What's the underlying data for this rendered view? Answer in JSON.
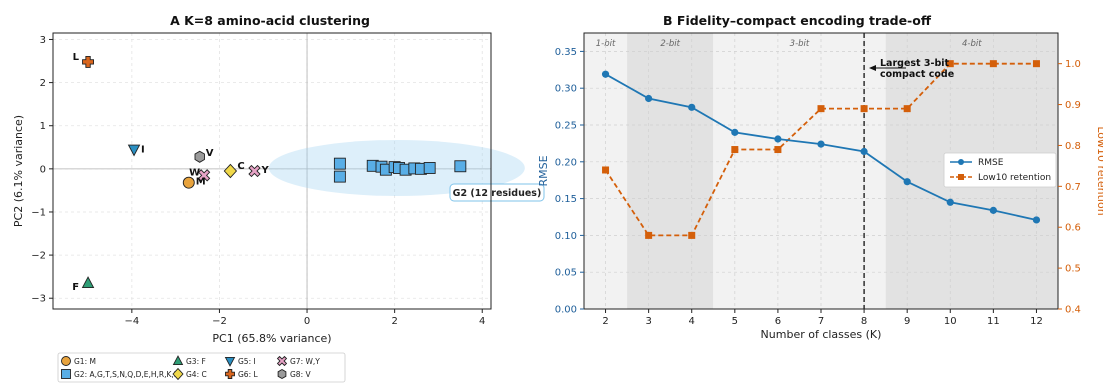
{
  "colors": {
    "G1": "#e8a33d",
    "G2": "#59aee6",
    "G3": "#2f9e76",
    "G4": "#f0d84a",
    "G5": "#2a8fc2",
    "G6": "#d9661e",
    "G7": "#e7a3c6",
    "G8": "#9a9a9a",
    "rmse": "#1f77b4",
    "low10": "#d45f0a"
  },
  "chart_data": [
    {
      "type": "scatter",
      "title": "A  K=8 amino-acid clustering",
      "xlabel": "PC1 (65.8% variance)",
      "ylabel": "PC2 (6.1% variance)",
      "xlim": [
        -5.8,
        4.2
      ],
      "ylim": [
        -3.25,
        3.15
      ],
      "xticks": [
        -4,
        -2,
        0,
        2,
        4
      ],
      "yticks": [
        -3,
        -2,
        -1,
        0,
        1,
        2,
        3
      ],
      "xtick_labels": [
        "−4",
        "−2",
        "0",
        "2",
        "4"
      ],
      "ytick_labels": [
        "−3",
        "−2",
        "−1",
        "0",
        "1",
        "2",
        "3"
      ],
      "grid": true,
      "annotation": "G2 (12 residues)",
      "points": [
        {
          "x": -5.0,
          "y": 2.48,
          "group": "G6",
          "marker": "plus",
          "label": "L"
        },
        {
          "x": -3.95,
          "y": 0.45,
          "group": "G5",
          "marker": "triangle-down",
          "label": "I"
        },
        {
          "x": -2.45,
          "y": 0.28,
          "group": "G8",
          "marker": "hexagon",
          "label": "V"
        },
        {
          "x": -2.7,
          "y": -0.32,
          "group": "G1",
          "marker": "circle",
          "label": "M"
        },
        {
          "x": -2.35,
          "y": -0.15,
          "group": "G7",
          "marker": "x",
          "label": "W"
        },
        {
          "x": -1.75,
          "y": -0.05,
          "group": "G4",
          "marker": "diamond",
          "label": "C"
        },
        {
          "x": -1.2,
          "y": -0.05,
          "group": "G7",
          "marker": "x",
          "label": "Y"
        },
        {
          "x": -5.0,
          "y": -2.65,
          "group": "G3",
          "marker": "triangle-up",
          "label": "F"
        },
        {
          "x": 0.75,
          "y": 0.12,
          "group": "G2",
          "marker": "square",
          "label": ""
        },
        {
          "x": 0.75,
          "y": -0.18,
          "group": "G2",
          "marker": "square",
          "label": ""
        },
        {
          "x": 1.5,
          "y": 0.07,
          "group": "G2",
          "marker": "square",
          "label": ""
        },
        {
          "x": 1.7,
          "y": 0.05,
          "group": "G2",
          "marker": "square",
          "label": ""
        },
        {
          "x": 1.8,
          "y": -0.02,
          "group": "G2",
          "marker": "square",
          "label": ""
        },
        {
          "x": 2.0,
          "y": 0.04,
          "group": "G2",
          "marker": "square",
          "label": ""
        },
        {
          "x": 2.1,
          "y": 0.02,
          "group": "G2",
          "marker": "square",
          "label": ""
        },
        {
          "x": 2.25,
          "y": -0.02,
          "group": "G2",
          "marker": "square",
          "label": ""
        },
        {
          "x": 2.45,
          "y": 0.01,
          "group": "G2",
          "marker": "square",
          "label": ""
        },
        {
          "x": 2.6,
          "y": 0.0,
          "group": "G2",
          "marker": "square",
          "label": ""
        },
        {
          "x": 2.8,
          "y": 0.02,
          "group": "G2",
          "marker": "square",
          "label": ""
        },
        {
          "x": 3.5,
          "y": 0.06,
          "group": "G2",
          "marker": "square",
          "label": ""
        }
      ],
      "legend": [
        {
          "group": "G1",
          "marker": "circle",
          "label": "G1: M"
        },
        {
          "group": "G2",
          "marker": "square",
          "label": "G2: A,G,T,S,N,Q,D,E,H,R,K,P"
        },
        {
          "group": "G3",
          "marker": "triangle-up",
          "label": "G3: F"
        },
        {
          "group": "G4",
          "marker": "diamond",
          "label": "G4: C"
        },
        {
          "group": "G5",
          "marker": "triangle-down",
          "label": "G5: I"
        },
        {
          "group": "G6",
          "marker": "plus",
          "label": "G6: L"
        },
        {
          "group": "G7",
          "marker": "x",
          "label": "G7: W,Y"
        },
        {
          "group": "G8",
          "marker": "hexagon",
          "label": "G8: V"
        }
      ]
    },
    {
      "type": "line",
      "title": "B  Fidelity–compact encoding trade-off",
      "xlabel": "Number of classes (K)",
      "ylabel": "RMSE",
      "y2label": "Low10 retention",
      "x": [
        2,
        3,
        4,
        5,
        6,
        7,
        8,
        9,
        10,
        11,
        12
      ],
      "xlim": [
        1.5,
        12.5
      ],
      "ylim": [
        0.0,
        0.375
      ],
      "y2lim": [
        0.4,
        1.075
      ],
      "yticks": [
        0.0,
        0.05,
        0.1,
        0.15,
        0.2,
        0.25,
        0.3,
        0.35
      ],
      "ytick_labels": [
        "0.00",
        "0.05",
        "0.10",
        "0.15",
        "0.20",
        "0.25",
        "0.30",
        "0.35"
      ],
      "y2ticks": [
        0.4,
        0.5,
        0.6,
        0.7,
        0.8,
        0.9,
        1.0
      ],
      "y2tick_labels": [
        "0.4",
        "0.5",
        "0.6",
        "0.7",
        "0.8",
        "0.9",
        "1.0"
      ],
      "series": [
        {
          "name": "RMSE",
          "axis": "left",
          "values": [
            0.319,
            0.286,
            0.274,
            0.24,
            0.231,
            0.224,
            0.214,
            0.173,
            0.145,
            0.134,
            0.121
          ]
        },
        {
          "name": "Low10 retention",
          "axis": "right",
          "values": [
            0.74,
            0.58,
            0.58,
            0.79,
            0.79,
            0.89,
            0.89,
            0.89,
            1.0,
            1.0,
            1.0
          ]
        }
      ],
      "bands": [
        {
          "label": "1-bit",
          "from": 1.5,
          "to": 2.5
        },
        {
          "label": "2-bit",
          "from": 2.5,
          "to": 4.5
        },
        {
          "label": "3-bit",
          "from": 4.5,
          "to": 8.5
        },
        {
          "label": "4-bit",
          "from": 8.5,
          "to": 12.5
        }
      ],
      "marker_line_x": 8,
      "annotation": [
        "Largest 3-bit",
        "compact code"
      ],
      "legend_position": "right-middle",
      "grid": true
    }
  ]
}
